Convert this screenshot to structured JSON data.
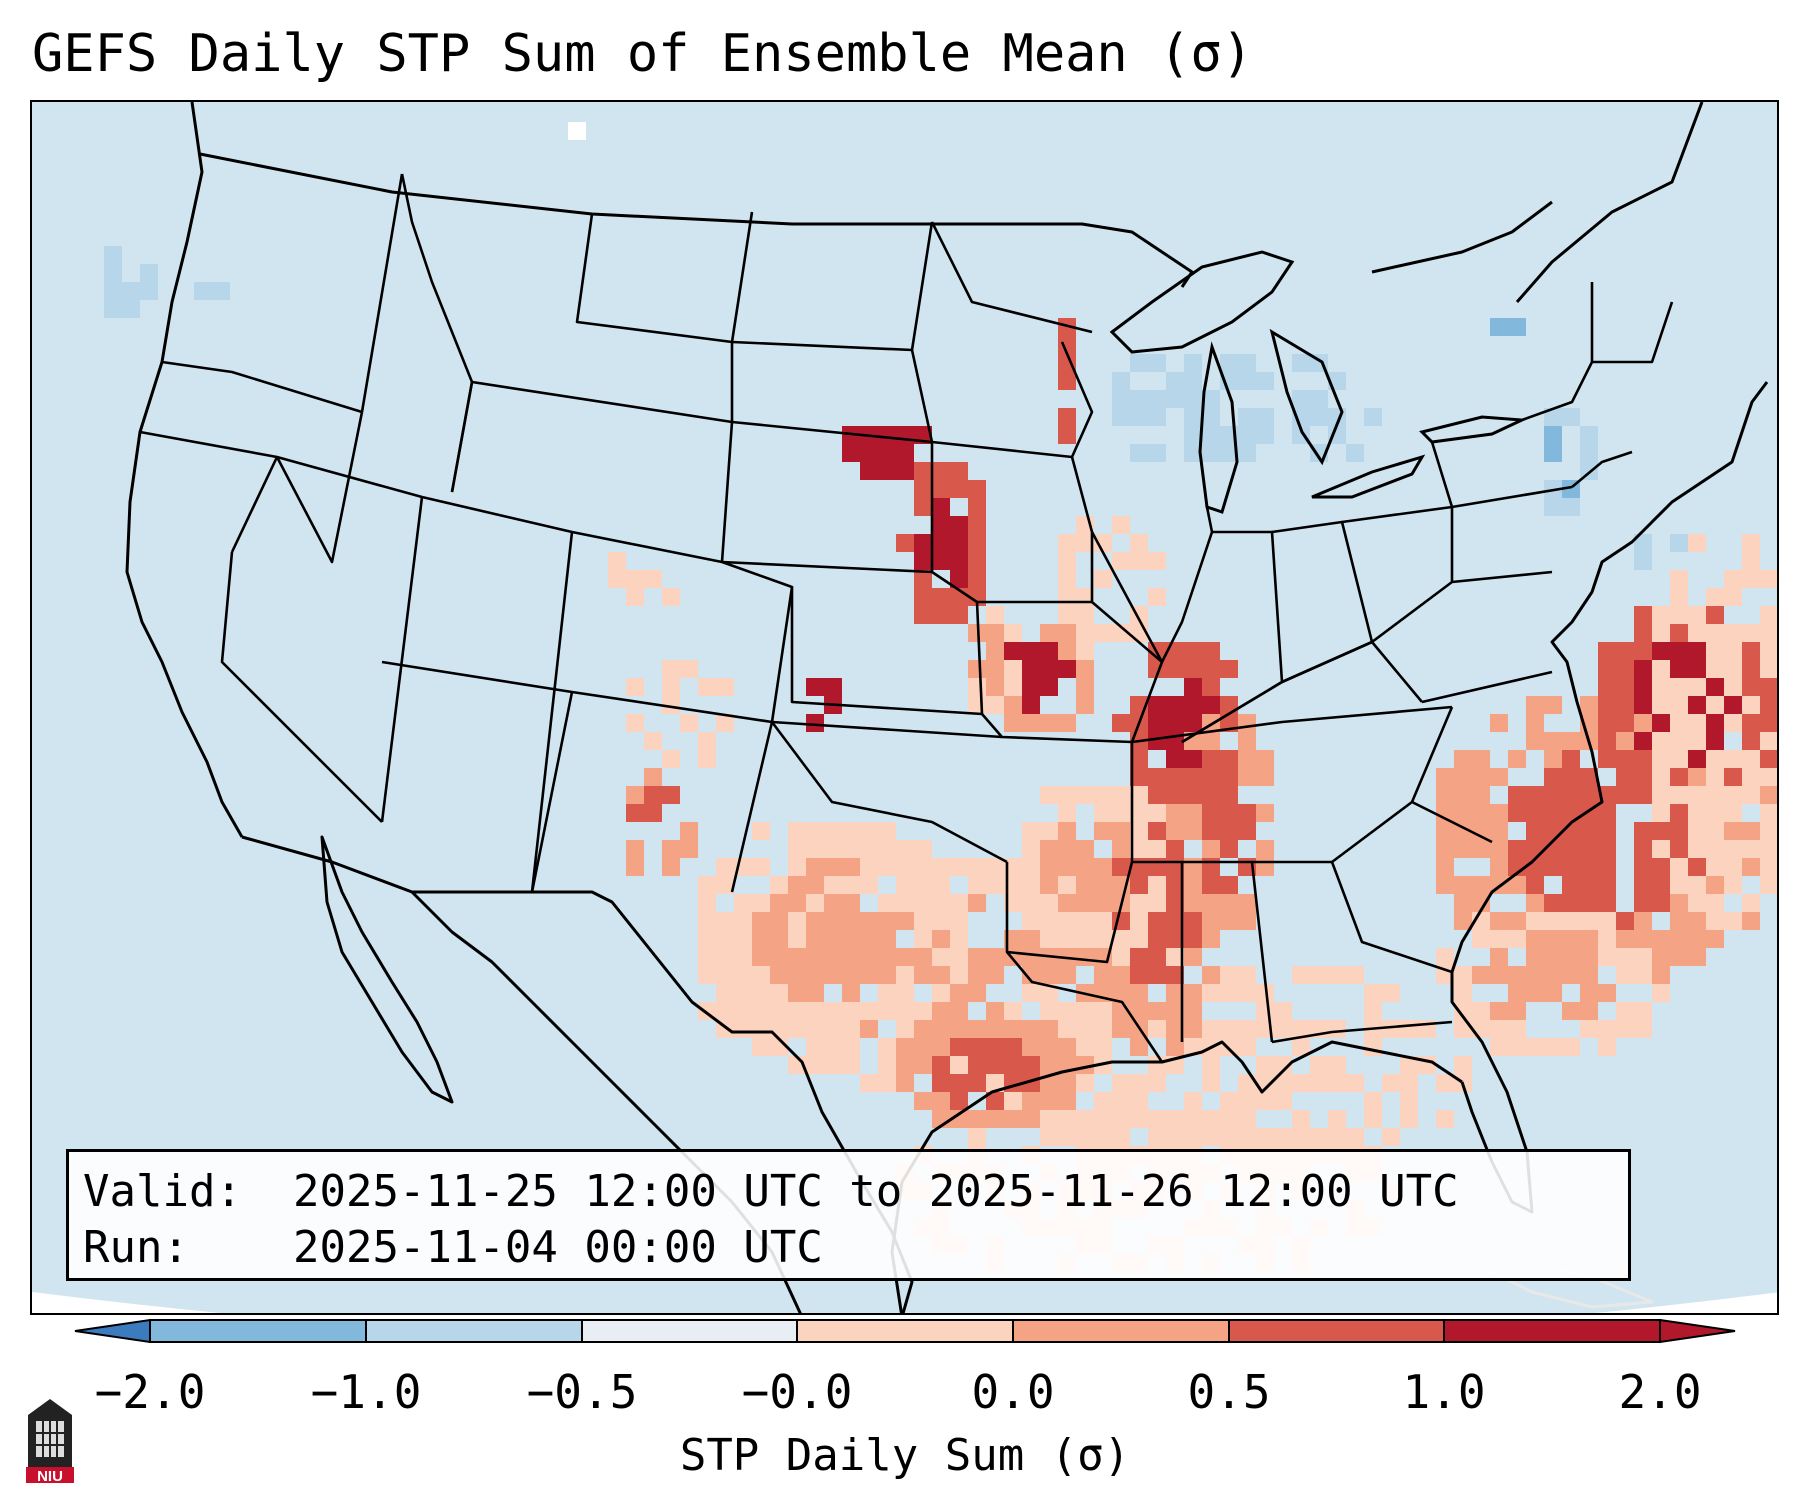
{
  "title": "GEFS Daily STP Sum of Ensemble Mean (σ)",
  "valid_box": {
    "valid_label": "Valid:",
    "valid_value": "2025-11-25 12:00 UTC to 2025-11-26 12:00 UTC",
    "run_label": "Run:",
    "run_value": "2025-11-04 00:00 UTC"
  },
  "colorbar": {
    "label": "STP Daily Sum (σ)",
    "ticks": [
      "−2.0",
      "−1.0",
      "−0.5",
      "−0.0",
      "0.0",
      "0.5",
      "1.0",
      "2.0"
    ],
    "colors": [
      "#3d7bbf",
      "#82b8dc",
      "#b7d6e9",
      "#e8eef3",
      "#fcd3be",
      "#f4a385",
      "#d9584c",
      "#b2182b"
    ],
    "extend": "both"
  },
  "logo": {
    "text": "NIU"
  },
  "map": {
    "background_color": "#d1e5f0",
    "projection": "Lambert conformal, CONUS",
    "features": [
      "state boundaries",
      "coastlines",
      "Great Lakes",
      "Canada/Mexico borders"
    ]
  },
  "chart_data": {
    "type": "heatmap",
    "title": "GEFS Daily STP Sum of Ensemble Mean (σ)",
    "units": "σ",
    "colorbar_label": "STP Daily Sum (σ)",
    "levels": [
      -2.0,
      -1.0,
      -0.5,
      -0.0,
      0.0,
      0.5,
      1.0,
      2.0
    ],
    "regions": [
      {
        "name": "Eastern Nebraska / Western Iowa",
        "value_range": [
          1.0,
          2.0
        ]
      },
      {
        "name": "South Dakota",
        "value_range": [
          1.0,
          2.0
        ]
      },
      {
        "name": "Missouri / Arkansas",
        "value_range": [
          1.0,
          2.0
        ]
      },
      {
        "name": "Mississippi / Louisiana",
        "value_range": [
          0.5,
          2.0
        ]
      },
      {
        "name": "Western Gulf of Mexico / Texas coast",
        "value_range": [
          0.5,
          1.5
        ]
      },
      {
        "name": "Western Atlantic off Southeast coast",
        "value_range": [
          0.5,
          2.0
        ]
      },
      {
        "name": "Texas / Oklahoma",
        "value_range": [
          0.0,
          1.0
        ]
      },
      {
        "name": "Great Lakes",
        "value_range": [
          -1.0,
          -0.5
        ]
      },
      {
        "name": "Northeast",
        "value_range": [
          -1.0,
          -0.5
        ]
      }
    ]
  }
}
